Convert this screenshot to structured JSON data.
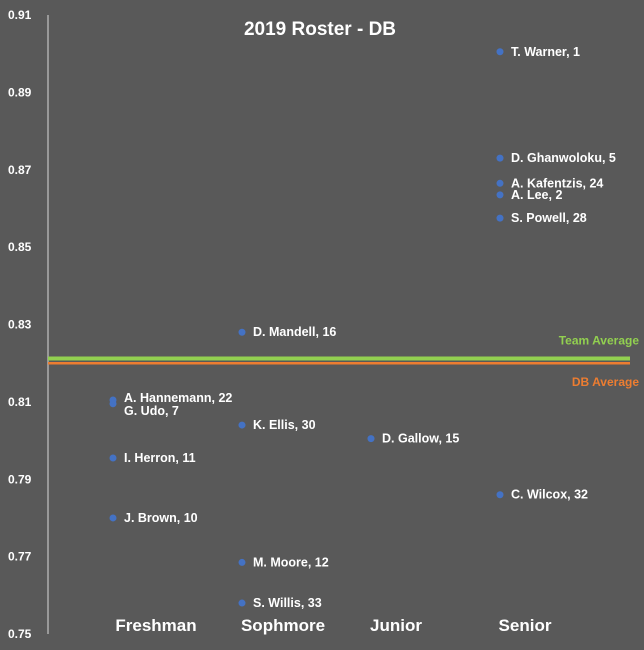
{
  "chart_data": {
    "type": "scatter",
    "title": "2019 Roster - DB",
    "categories": [
      "Freshman",
      "Sophmore",
      "Junior",
      "Senior"
    ],
    "ylim": [
      0.75,
      0.91
    ],
    "y_ticks": [
      0.75,
      0.77,
      0.79,
      0.81,
      0.83,
      0.85,
      0.87,
      0.89,
      0.91
    ],
    "grid": false,
    "marker_color": "#4472C4",
    "points": [
      {
        "category": "Freshman",
        "y": 0.8105,
        "label": "A. Hannemann, 22"
      },
      {
        "category": "Freshman",
        "y": 0.8095,
        "label": "G. Udo, 7"
      },
      {
        "category": "Freshman",
        "y": 0.7955,
        "label": "I. Herron, 11"
      },
      {
        "category": "Freshman",
        "y": 0.78,
        "label": "J. Brown, 10"
      },
      {
        "category": "Sophmore",
        "y": 0.828,
        "label": "D. Mandell, 16"
      },
      {
        "category": "Sophmore",
        "y": 0.804,
        "label": "K. Ellis, 30"
      },
      {
        "category": "Sophmore",
        "y": 0.7685,
        "label": "M. Moore, 12"
      },
      {
        "category": "Sophmore",
        "y": 0.758,
        "label": "S. Willis, 33"
      },
      {
        "category": "Junior",
        "y": 0.8005,
        "label": "D. Gallow, 15"
      },
      {
        "category": "Senior",
        "y": 0.9005,
        "label": "T. Warner, 1"
      },
      {
        "category": "Senior",
        "y": 0.873,
        "label": "D. Ghanwoloku, 5"
      },
      {
        "category": "Senior",
        "y": 0.8665,
        "label": "A. Kafentzis, 24"
      },
      {
        "category": "Senior",
        "y": 0.8635,
        "label": "A. Lee, 2"
      },
      {
        "category": "Senior",
        "y": 0.8575,
        "label": "S. Powell, 28"
      },
      {
        "category": "Senior",
        "y": 0.786,
        "label": "C. Wilcox, 32"
      }
    ],
    "reference_lines": [
      {
        "name": "Team Average",
        "y": 0.8212,
        "color": "#92D050"
      },
      {
        "name": "DB Average",
        "y": 0.82,
        "color": "#ED7D31"
      }
    ]
  }
}
